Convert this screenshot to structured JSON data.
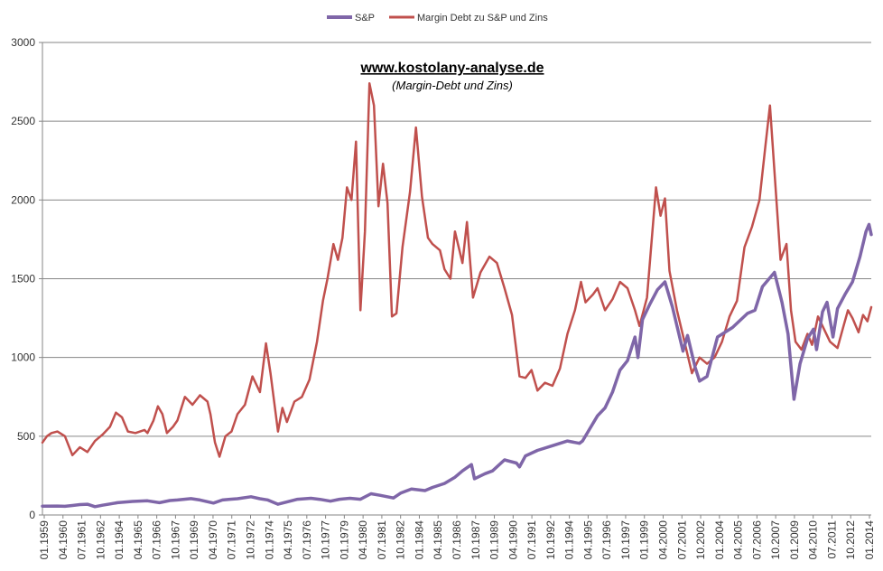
{
  "chart_data": {
    "type": "line",
    "title": "www.kostolany-analyse.de",
    "subtitle": "(Margin-Debt und Zins)",
    "ylim": [
      0,
      3000
    ],
    "yticks": [
      0,
      500,
      1000,
      1500,
      2000,
      2500,
      3000
    ],
    "xlim": [
      1959.0,
      2014.25
    ],
    "legend_position": "top-center",
    "grid": true,
    "xtick_labels": [
      "01.1959",
      "04.1960",
      "07.1961",
      "10.1962",
      "01.1964",
      "04.1965",
      "07.1966",
      "10.1967",
      "01.1969",
      "04.1970",
      "07.1971",
      "10.1972",
      "01.1974",
      "04.1975",
      "07.1976",
      "10.1977",
      "01.1979",
      "04.1980",
      "07.1981",
      "10.1982",
      "01.1984",
      "04.1985",
      "07.1986",
      "10.1987",
      "01.1989",
      "04.1990",
      "07.1991",
      "10.1992",
      "01.1994",
      "04.1995",
      "07.1996",
      "10.1997",
      "01.1999",
      "04.2000",
      "07.2001",
      "10.2002",
      "01.2004",
      "04.2005",
      "07.2006",
      "10.2007",
      "01.2009",
      "04.2010",
      "07.2011",
      "10.2012",
      "01.2014"
    ],
    "series": [
      {
        "name": "S&P",
        "color": "#7f66a8",
        "points": [
          [
            1959.0,
            56
          ],
          [
            1960.0,
            57
          ],
          [
            1960.5,
            55
          ],
          [
            1961.0,
            60
          ],
          [
            1961.5,
            66
          ],
          [
            1962.0,
            68
          ],
          [
            1962.5,
            53
          ],
          [
            1963.0,
            62
          ],
          [
            1963.5,
            70
          ],
          [
            1964.0,
            78
          ],
          [
            1965.0,
            86
          ],
          [
            1966.0,
            90
          ],
          [
            1966.8,
            78
          ],
          [
            1967.5,
            92
          ],
          [
            1968.0,
            95
          ],
          [
            1968.9,
            104
          ],
          [
            1969.5,
            95
          ],
          [
            1970.4,
            76
          ],
          [
            1971.0,
            95
          ],
          [
            1971.5,
            100
          ],
          [
            1972.0,
            103
          ],
          [
            1972.9,
            116
          ],
          [
            1973.5,
            103
          ],
          [
            1974.0,
            96
          ],
          [
            1974.7,
            68
          ],
          [
            1975.5,
            88
          ],
          [
            1976.0,
            100
          ],
          [
            1976.9,
            106
          ],
          [
            1977.5,
            99
          ],
          [
            1978.2,
            88
          ],
          [
            1978.8,
            100
          ],
          [
            1979.5,
            106
          ],
          [
            1980.2,
            100
          ],
          [
            1980.9,
            135
          ],
          [
            1981.5,
            125
          ],
          [
            1982.4,
            108
          ],
          [
            1982.9,
            140
          ],
          [
            1983.6,
            165
          ],
          [
            1984.5,
            155
          ],
          [
            1985.0,
            175
          ],
          [
            1985.8,
            200
          ],
          [
            1986.5,
            240
          ],
          [
            1987.0,
            280
          ],
          [
            1987.6,
            320
          ],
          [
            1987.8,
            230
          ],
          [
            1988.5,
            262
          ],
          [
            1989.0,
            280
          ],
          [
            1989.8,
            350
          ],
          [
            1990.6,
            330
          ],
          [
            1990.8,
            305
          ],
          [
            1991.2,
            375
          ],
          [
            1992.0,
            410
          ],
          [
            1993.0,
            440
          ],
          [
            1994.0,
            470
          ],
          [
            1994.8,
            455
          ],
          [
            1995.0,
            470
          ],
          [
            1995.5,
            550
          ],
          [
            1996.0,
            630
          ],
          [
            1996.5,
            680
          ],
          [
            1997.0,
            780
          ],
          [
            1997.5,
            920
          ],
          [
            1998.0,
            980
          ],
          [
            1998.5,
            1130
          ],
          [
            1998.7,
            1000
          ],
          [
            1999.0,
            1240
          ],
          [
            1999.5,
            1340
          ],
          [
            2000.0,
            1430
          ],
          [
            2000.5,
            1480
          ],
          [
            2001.0,
            1320
          ],
          [
            2001.7,
            1040
          ],
          [
            2002.0,
            1140
          ],
          [
            2002.5,
            940
          ],
          [
            2002.8,
            850
          ],
          [
            2003.3,
            880
          ],
          [
            2004.0,
            1130
          ],
          [
            2005.0,
            1190
          ],
          [
            2006.0,
            1280
          ],
          [
            2006.5,
            1300
          ],
          [
            2007.0,
            1450
          ],
          [
            2007.8,
            1540
          ],
          [
            2008.3,
            1350
          ],
          [
            2008.7,
            1150
          ],
          [
            2009.1,
            735
          ],
          [
            2009.5,
            960
          ],
          [
            2010.0,
            1120
          ],
          [
            2010.4,
            1180
          ],
          [
            2010.6,
            1050
          ],
          [
            2011.0,
            1290
          ],
          [
            2011.3,
            1350
          ],
          [
            2011.7,
            1130
          ],
          [
            2012.0,
            1310
          ],
          [
            2012.5,
            1400
          ],
          [
            2013.0,
            1480
          ],
          [
            2013.5,
            1640
          ],
          [
            2013.9,
            1800
          ],
          [
            2014.1,
            1845
          ],
          [
            2014.25,
            1780
          ]
        ]
      },
      {
        "name": "Margin Debt zu S&P und Zins",
        "color": "#c0504d",
        "points": [
          [
            1959.0,
            460
          ],
          [
            1959.3,
            500
          ],
          [
            1959.6,
            520
          ],
          [
            1960.0,
            530
          ],
          [
            1960.5,
            500
          ],
          [
            1961.0,
            380
          ],
          [
            1961.5,
            430
          ],
          [
            1962.0,
            400
          ],
          [
            1962.5,
            470
          ],
          [
            1963.0,
            510
          ],
          [
            1963.5,
            560
          ],
          [
            1963.9,
            650
          ],
          [
            1964.3,
            620
          ],
          [
            1964.7,
            530
          ],
          [
            1965.2,
            520
          ],
          [
            1965.8,
            540
          ],
          [
            1966.0,
            520
          ],
          [
            1966.4,
            600
          ],
          [
            1966.7,
            690
          ],
          [
            1967.0,
            640
          ],
          [
            1967.3,
            520
          ],
          [
            1967.7,
            560
          ],
          [
            1968.0,
            600
          ],
          [
            1968.5,
            750
          ],
          [
            1969.0,
            700
          ],
          [
            1969.5,
            760
          ],
          [
            1970.0,
            720
          ],
          [
            1970.2,
            640
          ],
          [
            1970.5,
            460
          ],
          [
            1970.8,
            370
          ],
          [
            1971.2,
            500
          ],
          [
            1971.6,
            530
          ],
          [
            1972.0,
            640
          ],
          [
            1972.5,
            700
          ],
          [
            1973.0,
            880
          ],
          [
            1973.5,
            780
          ],
          [
            1973.9,
            1090
          ],
          [
            1974.2,
            900
          ],
          [
            1974.7,
            530
          ],
          [
            1975.0,
            680
          ],
          [
            1975.3,
            590
          ],
          [
            1975.8,
            720
          ],
          [
            1976.3,
            750
          ],
          [
            1976.8,
            860
          ],
          [
            1977.3,
            1100
          ],
          [
            1977.7,
            1360
          ],
          [
            1978.0,
            1500
          ],
          [
            1978.4,
            1720
          ],
          [
            1978.7,
            1620
          ],
          [
            1979.0,
            1760
          ],
          [
            1979.3,
            2080
          ],
          [
            1979.6,
            2000
          ],
          [
            1979.9,
            2370
          ],
          [
            1980.2,
            1300
          ],
          [
            1980.5,
            1800
          ],
          [
            1980.8,
            2740
          ],
          [
            1981.1,
            2600
          ],
          [
            1981.4,
            1960
          ],
          [
            1981.7,
            2230
          ],
          [
            1982.0,
            1980
          ],
          [
            1982.3,
            1260
          ],
          [
            1982.6,
            1280
          ],
          [
            1983.0,
            1700
          ],
          [
            1983.5,
            2050
          ],
          [
            1983.9,
            2460
          ],
          [
            1984.3,
            2020
          ],
          [
            1984.7,
            1760
          ],
          [
            1985.0,
            1720
          ],
          [
            1985.5,
            1680
          ],
          [
            1985.8,
            1560
          ],
          [
            1986.2,
            1500
          ],
          [
            1986.5,
            1800
          ],
          [
            1987.0,
            1600
          ],
          [
            1987.3,
            1860
          ],
          [
            1987.7,
            1380
          ],
          [
            1988.2,
            1540
          ],
          [
            1988.8,
            1640
          ],
          [
            1989.3,
            1600
          ],
          [
            1989.8,
            1440
          ],
          [
            1990.3,
            1270
          ],
          [
            1990.8,
            880
          ],
          [
            1991.2,
            870
          ],
          [
            1991.6,
            920
          ],
          [
            1992.0,
            790
          ],
          [
            1992.5,
            840
          ],
          [
            1993.0,
            820
          ],
          [
            1993.5,
            930
          ],
          [
            1994.0,
            1150
          ],
          [
            1994.5,
            1300
          ],
          [
            1994.9,
            1480
          ],
          [
            1995.2,
            1350
          ],
          [
            1995.7,
            1400
          ],
          [
            1996.0,
            1440
          ],
          [
            1996.5,
            1300
          ],
          [
            1997.0,
            1370
          ],
          [
            1997.5,
            1480
          ],
          [
            1998.0,
            1440
          ],
          [
            1998.5,
            1300
          ],
          [
            1998.8,
            1200
          ],
          [
            1999.3,
            1380
          ],
          [
            1999.9,
            2080
          ],
          [
            2000.2,
            1900
          ],
          [
            2000.5,
            2010
          ],
          [
            2000.8,
            1550
          ],
          [
            2001.3,
            1300
          ],
          [
            2001.8,
            1100
          ],
          [
            2002.3,
            900
          ],
          [
            2002.8,
            1000
          ],
          [
            2003.3,
            960
          ],
          [
            2003.8,
            1000
          ],
          [
            2004.3,
            1100
          ],
          [
            2004.8,
            1260
          ],
          [
            2005.3,
            1360
          ],
          [
            2005.8,
            1700
          ],
          [
            2006.3,
            1830
          ],
          [
            2006.8,
            2000
          ],
          [
            2007.2,
            2350
          ],
          [
            2007.5,
            2600
          ],
          [
            2007.8,
            2180
          ],
          [
            2008.2,
            1620
          ],
          [
            2008.6,
            1720
          ],
          [
            2008.9,
            1300
          ],
          [
            2009.2,
            1100
          ],
          [
            2009.6,
            1050
          ],
          [
            2010.0,
            1150
          ],
          [
            2010.3,
            1080
          ],
          [
            2010.7,
            1260
          ],
          [
            2011.0,
            1200
          ],
          [
            2011.5,
            1100
          ],
          [
            2012.0,
            1060
          ],
          [
            2012.4,
            1200
          ],
          [
            2012.7,
            1300
          ],
          [
            2013.0,
            1250
          ],
          [
            2013.4,
            1160
          ],
          [
            2013.7,
            1270
          ],
          [
            2014.0,
            1230
          ],
          [
            2014.25,
            1320
          ]
        ]
      }
    ]
  }
}
